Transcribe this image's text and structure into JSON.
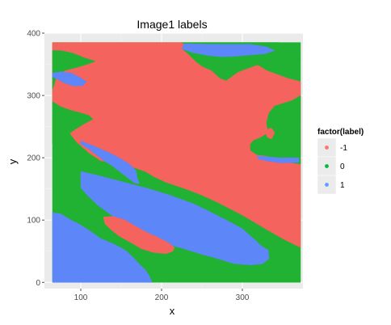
{
  "chart_data": {
    "type": "heatmap",
    "title": "Image1 labels",
    "xlabel": "x",
    "ylabel": "y",
    "xlim": [
      55,
      375
    ],
    "ylim": [
      -10,
      400
    ],
    "x_ticks": [
      100,
      200,
      300
    ],
    "y_ticks": [
      0,
      100,
      200,
      300,
      400
    ],
    "grid": true,
    "legend": {
      "title": "factor(label)",
      "position": "right",
      "entries": [
        {
          "label": "-1",
          "color": "#F8766D"
        },
        {
          "label": "0",
          "color": "#00BA38"
        },
        {
          "label": "1",
          "color": "#619CFF"
        }
      ]
    },
    "image_extent": {
      "x": [
        65,
        372
      ],
      "y": [
        0,
        385
      ]
    },
    "regions": [
      {
        "label": "0",
        "color": "#22B233",
        "polygon": [
          [
            65,
            0
          ],
          [
            372,
            0
          ],
          [
            372,
            385
          ],
          [
            65,
            385
          ]
        ]
      },
      {
        "label": "-1",
        "color": "#F4635E",
        "polygon": [
          [
            65,
            385
          ],
          [
            225,
            385
          ],
          [
            228,
            383
          ],
          [
            227,
            373
          ],
          [
            232,
            368
          ],
          [
            250,
            362
          ],
          [
            280,
            362
          ],
          [
            300,
            355
          ],
          [
            310,
            348
          ],
          [
            320,
            348
          ],
          [
            330,
            340
          ],
          [
            355,
            328
          ],
          [
            372,
            322
          ],
          [
            372,
            56
          ],
          [
            350,
            70
          ],
          [
            330,
            85
          ],
          [
            300,
            108
          ],
          [
            270,
            128
          ],
          [
            250,
            140
          ],
          [
            230,
            150
          ],
          [
            205,
            161
          ],
          [
            190,
            170
          ],
          [
            180,
            178
          ],
          [
            155,
            189
          ],
          [
            140,
            193
          ],
          [
            125,
            195
          ],
          [
            110,
            208
          ],
          [
            95,
            225
          ],
          [
            80,
            250
          ],
          [
            70,
            275
          ],
          [
            65,
            285
          ]
        ]
      },
      {
        "label": "0",
        "color": "#22B233",
        "polygon": [
          [
            225,
            385
          ],
          [
            345,
            385
          ],
          [
            350,
            378
          ],
          [
            345,
            367
          ],
          [
            330,
            363
          ],
          [
            320,
            350
          ],
          [
            295,
            338
          ],
          [
            283,
            327
          ],
          [
            280,
            324
          ],
          [
            272,
            328
          ],
          [
            262,
            340
          ],
          [
            250,
            347
          ],
          [
            242,
            355
          ],
          [
            232,
            368
          ],
          [
            227,
            373
          ],
          [
            228,
            383
          ]
        ]
      },
      {
        "label": "0",
        "color": "#22B233",
        "polygon": [
          [
            372,
            300
          ],
          [
            362,
            292
          ],
          [
            340,
            283
          ],
          [
            333,
            272
          ],
          [
            330,
            256
          ],
          [
            332,
            240
          ],
          [
            322,
            232
          ],
          [
            314,
            228
          ],
          [
            310,
            222
          ],
          [
            310,
            212
          ],
          [
            318,
            205
          ],
          [
            330,
            203
          ],
          [
            342,
            198
          ],
          [
            355,
            193
          ],
          [
            372,
            190
          ]
        ]
      },
      {
        "label": "0",
        "color": "#22B233",
        "polygon": [
          [
            65,
            372
          ],
          [
            75,
            372
          ],
          [
            90,
            368
          ],
          [
            105,
            360
          ],
          [
            118,
            355
          ],
          [
            108,
            350
          ],
          [
            95,
            345
          ],
          [
            80,
            340
          ],
          [
            70,
            330
          ],
          [
            65,
            310
          ]
        ]
      },
      {
        "label": "0",
        "color": "#22B233",
        "polygon": [
          [
            65,
            290
          ],
          [
            75,
            282
          ],
          [
            88,
            276
          ],
          [
            100,
            272
          ],
          [
            110,
            268
          ],
          [
            115,
            262
          ],
          [
            102,
            253
          ],
          [
            90,
            243
          ],
          [
            82,
            235
          ],
          [
            75,
            228
          ],
          [
            65,
            222
          ]
        ]
      },
      {
        "label": "1",
        "color": "#5D86F8",
        "polygon": [
          [
            65,
            336
          ],
          [
            75,
            338
          ],
          [
            88,
            336
          ],
          [
            100,
            328
          ],
          [
            107,
            322
          ],
          [
            103,
            316
          ],
          [
            92,
            315
          ],
          [
            80,
            320
          ],
          [
            70,
            327
          ],
          [
            65,
            330
          ]
        ]
      },
      {
        "label": "1",
        "color": "#5D86F8",
        "polygon": [
          [
            228,
            383
          ],
          [
            270,
            382
          ],
          [
            310,
            382
          ],
          [
            330,
            378
          ],
          [
            340,
            372
          ],
          [
            328,
            367
          ],
          [
            310,
            365
          ],
          [
            292,
            363
          ],
          [
            275,
            362
          ],
          [
            258,
            364
          ],
          [
            238,
            369
          ],
          [
            225,
            375
          ]
        ]
      },
      {
        "label": "1",
        "color": "#5D86F8",
        "polygon": [
          [
            100,
            227
          ],
          [
            110,
            222
          ],
          [
            125,
            214
          ],
          [
            140,
            205
          ],
          [
            150,
            198
          ],
          [
            160,
            190
          ],
          [
            168,
            180
          ],
          [
            170,
            168
          ],
          [
            172,
            160
          ],
          [
            172,
            158
          ],
          [
            166,
            160
          ],
          [
            160,
            166
          ],
          [
            150,
            176
          ],
          [
            140,
            186
          ],
          [
            128,
            196
          ],
          [
            118,
            206
          ],
          [
            108,
            216
          ],
          [
            100,
            222
          ]
        ]
      },
      {
        "label": "1",
        "color": "#5D86F8",
        "polygon": [
          [
            100,
            178
          ],
          [
            120,
            172
          ],
          [
            150,
            162
          ],
          [
            185,
            150
          ],
          [
            210,
            140
          ],
          [
            240,
            126
          ],
          [
            262,
            112
          ],
          [
            280,
            100
          ],
          [
            300,
            86
          ],
          [
            314,
            70
          ],
          [
            324,
            58
          ],
          [
            332,
            52
          ],
          [
            333,
            38
          ],
          [
            325,
            30
          ],
          [
            310,
            28
          ],
          [
            290,
            30
          ],
          [
            270,
            38
          ],
          [
            250,
            45
          ],
          [
            225,
            55
          ],
          [
            200,
            64
          ],
          [
            178,
            75
          ],
          [
            160,
            88
          ],
          [
            138,
            108
          ],
          [
            120,
            125
          ],
          [
            108,
            140
          ],
          [
            100,
            152
          ]
        ]
      },
      {
        "label": "1",
        "color": "#5D86F8",
        "polygon": [
          [
            65,
            112
          ],
          [
            75,
            110
          ],
          [
            88,
            100
          ],
          [
            100,
            92
          ],
          [
            112,
            82
          ],
          [
            125,
            70
          ],
          [
            140,
            62
          ],
          [
            155,
            52
          ],
          [
            165,
            40
          ],
          [
            172,
            30
          ],
          [
            180,
            20
          ],
          [
            185,
            10
          ],
          [
            188,
            0
          ],
          [
            65,
            0
          ]
        ]
      },
      {
        "label": "-1",
        "color": "#F4635E",
        "polygon": [
          [
            128,
            105
          ],
          [
            140,
            106
          ],
          [
            155,
            100
          ],
          [
            168,
            90
          ],
          [
            182,
            80
          ],
          [
            196,
            72
          ],
          [
            208,
            64
          ],
          [
            216,
            56
          ],
          [
            214,
            50
          ],
          [
            205,
            46
          ],
          [
            190,
            48
          ],
          [
            175,
            54
          ],
          [
            162,
            64
          ],
          [
            148,
            74
          ],
          [
            138,
            84
          ],
          [
            130,
            94
          ]
        ]
      },
      {
        "label": "1",
        "color": "#5D86F8",
        "polygon": [
          [
            318,
            203
          ],
          [
            328,
            202
          ],
          [
            345,
            200
          ],
          [
            360,
            200
          ],
          [
            370,
            200
          ],
          [
            370,
            193
          ],
          [
            360,
            192
          ],
          [
            345,
            192
          ],
          [
            330,
            195
          ],
          [
            320,
            198
          ]
        ]
      },
      {
        "label": "-1",
        "color": "#F4635E",
        "polygon": [
          [
            330,
            245
          ],
          [
            336,
            248
          ],
          [
            340,
            240
          ],
          [
            336,
            230
          ],
          [
            331,
            233
          ],
          [
            329,
            240
          ]
        ]
      }
    ]
  }
}
